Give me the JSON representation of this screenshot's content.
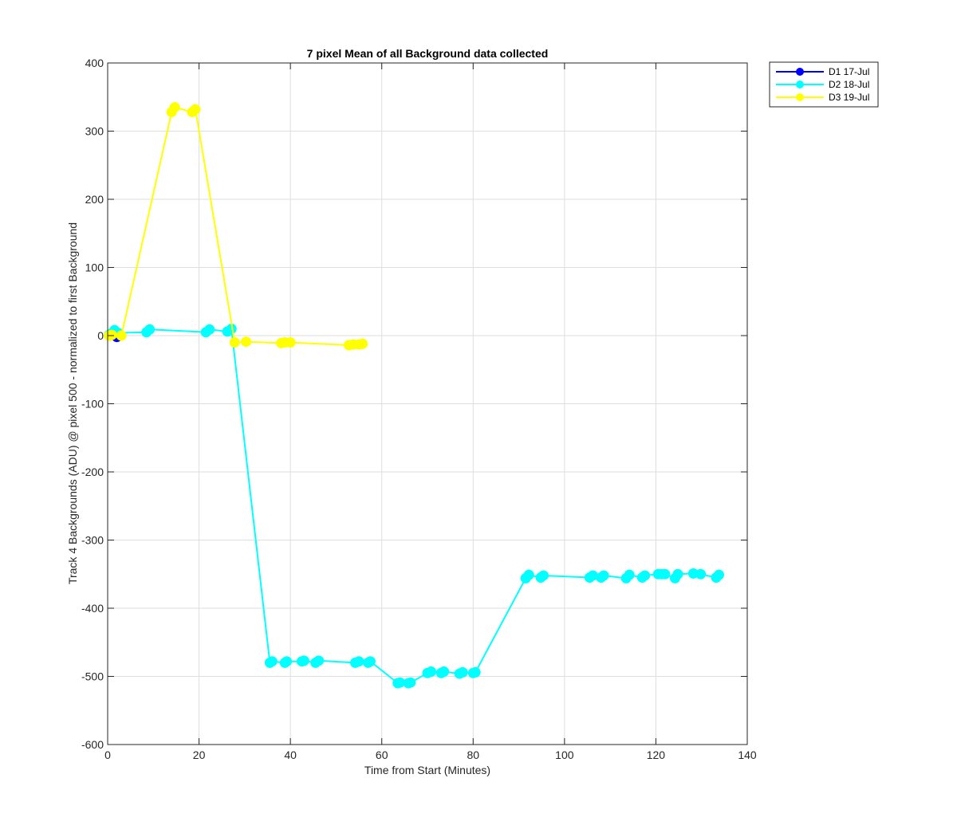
{
  "chart_data": {
    "type": "line",
    "title": "7 pixel Mean of all Background data collected",
    "xlabel": "Time from Start (Minutes)",
    "ylabel": "Track 4 Backgrounds (ADU) @ pixel 500 - normalized to first Background",
    "xlim": [
      0,
      140
    ],
    "ylim": [
      -600,
      400
    ],
    "xticks": [
      0,
      20,
      40,
      60,
      80,
      100,
      120,
      140
    ],
    "yticks": [
      -600,
      -500,
      -400,
      -300,
      -200,
      -100,
      0,
      100,
      200,
      300,
      400
    ],
    "grid": true,
    "legend_position": "outside-top-right",
    "series": [
      {
        "name": "D1 17-Jul",
        "color": "#0000ff",
        "x": [
          2.0
        ],
        "y": [
          -2
        ]
      },
      {
        "name": "D2 18-Jul",
        "color": "#00ffff",
        "x": [
          0.3,
          0.8,
          1.5,
          2.3,
          8.5,
          9.2,
          21.5,
          22.3,
          26.2,
          27.1,
          35.5,
          36.0,
          38.8,
          39.2,
          42.5,
          43.0,
          45.5,
          46.2,
          54.2,
          55.0,
          57.0,
          57.5,
          63.5,
          64.0,
          65.8,
          66.3,
          70.0,
          70.8,
          73.0,
          73.6,
          77.0,
          77.7,
          80.0,
          80.5,
          91.5,
          92.2,
          94.8,
          95.4,
          105.5,
          106.2,
          108.0,
          108.6,
          113.5,
          114.2,
          117.0,
          117.6,
          120.5,
          121.2,
          122.0,
          124.2,
          124.8,
          128.2,
          129.8,
          133.2,
          133.8
        ],
        "y": [
          1,
          3,
          8,
          4,
          5,
          9,
          5,
          9,
          6,
          10,
          -480,
          -478,
          -480,
          -478,
          -478,
          -477,
          -480,
          -477,
          -480,
          -478,
          -480,
          -478,
          -510,
          -509,
          -510,
          -509,
          -495,
          -493,
          -495,
          -493,
          -496,
          -494,
          -495,
          -494,
          -356,
          -351,
          -355,
          -352,
          -355,
          -352,
          -355,
          -352,
          -356,
          -351,
          -355,
          -352,
          -350,
          -350,
          -350,
          -356,
          -350,
          -349,
          -350,
          -355,
          -351
        ]
      },
      {
        "name": "D3 19-Jul",
        "color": "#ffff00",
        "x": [
          0.3,
          0.9,
          3.0,
          14.0,
          14.7,
          18.5,
          19.2,
          27.8,
          30.3,
          38.0,
          38.8,
          40.0,
          52.8,
          53.8,
          55.0,
          55.8
        ],
        "y": [
          0,
          1,
          0,
          328,
          335,
          328,
          332,
          -10,
          -9,
          -11,
          -10,
          -10,
          -14,
          -13,
          -13,
          -12
        ]
      }
    ]
  }
}
